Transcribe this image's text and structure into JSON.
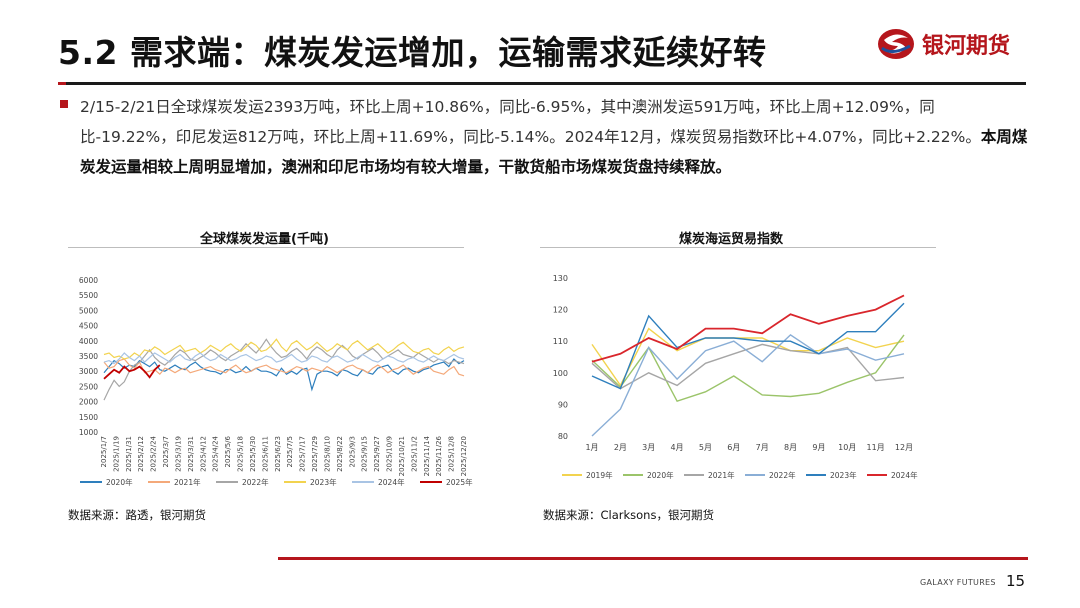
{
  "header": {
    "title": "5.2 需求端：煤炭发运增加，运输需求延续好转",
    "logo_text": "银河期货"
  },
  "body": {
    "text_plain": "2/15-2/21日全球煤炭发运2393万吨，环比上周+10.86%，同比-6.95%，其中澳洲发运591万吨，环比上周+12.09%，同比-19.22%，印尼发运812万吨，环比上周+11.69%，同比-5.14%。2024年12月，煤炭贸易指数环比+4.07%，同比+2.22%。",
    "text_bold": "本周煤炭发运量相较上周明显增加，澳洲和印尼市场均有较大增量，干散货船市场煤炭货盘持续释放。"
  },
  "chart_left": {
    "title": "全球煤炭发运量(千吨)",
    "source": "数据来源：路透，银河期货"
  },
  "chart_right": {
    "title": "煤炭海运贸易指数",
    "source": "数据来源：Clarksons，银河期货"
  },
  "footer": {
    "brand": "GALAXY FUTURES",
    "page": "15"
  },
  "colors": {
    "accent_red": "#b5161c",
    "s2019": "#f2d34f",
    "s2020": "#9bc46a",
    "s2021": "#a6a6a6",
    "s2022": "#8aaed6",
    "s2023": "#2e7fbd",
    "s2024": "#d9262c"
  },
  "chart_data": [
    {
      "type": "line",
      "ylim": [
        1000,
        6000
      ],
      "yticks": [
        1000,
        1500,
        2000,
        2500,
        3000,
        3500,
        4000,
        4500,
        5000,
        5500,
        6000
      ],
      "x_tick_labels": [
        "2025/1/7",
        "2025/1/19",
        "2025/1/31",
        "2025/2/12",
        "2025/2/24",
        "2025/3/7",
        "2025/3/19",
        "2025/3/31",
        "2025/4/12",
        "2025/4/24",
        "2025/5/6",
        "2025/5/18",
        "2025/5/30",
        "2025/6/11",
        "2025/6/23",
        "2025/7/5",
        "2025/7/17",
        "2025/7/29",
        "2025/8/10",
        "2025/8/22",
        "2025/9/3",
        "2025/9/15",
        "2025/9/27",
        "2025/10/9",
        "2025/10/21",
        "2025/11/2",
        "2025/11/14",
        "2025/11/26",
        "2025/12/8",
        "2025/12/20"
      ],
      "legend_position": "bottom",
      "grid": false,
      "series": [
        {
          "name": "2020年",
          "color": "#2e7fbd",
          "values": [
            2950,
            3150,
            3350,
            3250,
            3100,
            3200,
            3150,
            3350,
            3250,
            3150,
            3300,
            3050,
            3000,
            3100,
            3200,
            3100,
            3050,
            3200,
            3300,
            3150,
            3050,
            3000,
            2980,
            2900,
            3050,
            3050,
            2950,
            3000,
            3150,
            3000,
            3100,
            3000,
            3000,
            2950,
            2850,
            3100,
            2900,
            3000,
            2900,
            3050,
            3100,
            2400,
            2900,
            3000,
            3000,
            2950,
            2850,
            3050,
            3000,
            2900,
            2850,
            3050,
            2950,
            2900,
            3100,
            3150,
            3200,
            3000,
            2900,
            3050,
            3100,
            3000,
            2950,
            3050,
            3100,
            3200,
            3250,
            3300,
            3150,
            3400,
            3250,
            3350
          ]
        },
        {
          "name": "2021年",
          "color": "#f4a97a",
          "values": [
            3300,
            3100,
            3150,
            3350,
            3400,
            3200,
            3100,
            3300,
            2950,
            3000,
            3050,
            2900,
            3100,
            3050,
            2950,
            3050,
            3100,
            2950,
            3000,
            3050,
            3100,
            3150,
            3050,
            3000,
            2950,
            3100,
            3200,
            3050,
            2950,
            3000,
            3100,
            3150,
            3200,
            3100,
            3050,
            3000,
            2950,
            3050,
            3150,
            3100,
            3000,
            3100,
            3050,
            3000,
            3150,
            3050,
            2950,
            3050,
            3150,
            3200,
            3100,
            3050,
            2950,
            3100,
            3200,
            3100,
            2950,
            3050,
            3100,
            3200,
            3050,
            2900,
            3000,
            3100,
            3150,
            3000,
            2950,
            2900,
            3050,
            3150,
            2900,
            2850
          ]
        },
        {
          "name": "2022年",
          "color": "#a6a6a6",
          "values": [
            2050,
            2400,
            2700,
            2500,
            2650,
            3000,
            3200,
            3300,
            3500,
            3700,
            3450,
            3300,
            3200,
            3350,
            3550,
            3700,
            3600,
            3400,
            3350,
            3450,
            3550,
            3700,
            3600,
            3450,
            3350,
            3500,
            3600,
            3700,
            3900,
            3750,
            3600,
            3800,
            4050,
            3800,
            3600,
            3450,
            3500,
            3650,
            3750,
            3600,
            3400,
            3650,
            3800,
            3700,
            3550,
            3450,
            3700,
            3850,
            3700,
            3500,
            3400,
            3550,
            3650,
            3750,
            3600,
            3400,
            3500,
            3600,
            3700,
            3550,
            3500,
            3450,
            3600,
            3500,
            3400,
            3300,
            3400,
            3350,
            3250,
            3350,
            3300,
            3250
          ]
        },
        {
          "name": "2023年",
          "color": "#f2d34f",
          "values": [
            3550,
            3600,
            3450,
            3500,
            3400,
            3450,
            3600,
            3500,
            3700,
            3650,
            3800,
            3700,
            3550,
            3650,
            3750,
            3850,
            3650,
            3700,
            3750,
            3600,
            3700,
            3850,
            3750,
            3650,
            3800,
            3900,
            3750,
            3650,
            3800,
            3950,
            3850,
            3650,
            3700,
            3850,
            4050,
            3800,
            3650,
            3900,
            4000,
            3850,
            3700,
            3800,
            3950,
            3800,
            3650,
            3750,
            3900,
            3800,
            3700,
            3900,
            4000,
            3850,
            3700,
            3800,
            3900,
            3750,
            3600,
            3700,
            3850,
            3950,
            3800,
            3650,
            3600,
            3700,
            3750,
            3600,
            3550,
            3700,
            3800,
            3650,
            3750,
            3800
          ]
        },
        {
          "name": "2024年",
          "color": "#a9c4e4",
          "values": [
            3300,
            3350,
            3250,
            3400,
            3600,
            3450,
            3350,
            3500,
            3300,
            3450,
            3600,
            3500,
            3400,
            3300,
            3450,
            3550,
            3400,
            3350,
            3500,
            3600,
            3450,
            3350,
            3400,
            3550,
            3450,
            3350,
            3400,
            3500,
            3550,
            3450,
            3350,
            3400,
            3500,
            3450,
            3300,
            3350,
            3450,
            3550,
            3400,
            3300,
            3350,
            3500,
            3450,
            3350,
            3300,
            3450,
            3500,
            3400,
            3300,
            3350,
            3450,
            3550,
            3450,
            3350,
            3300,
            3400,
            3500,
            3450,
            3350,
            3300,
            3400,
            3450,
            3350,
            3300,
            3400,
            3500,
            3400,
            3350,
            3450,
            3550,
            3450,
            3400
          ]
        },
        {
          "name": "2025年",
          "color": "#c00000",
          "values": [
            2750,
            2900,
            3050,
            2950,
            3150,
            3000,
            3050,
            3150,
            3000,
            2800,
            3050,
            3200
          ]
        }
      ]
    },
    {
      "type": "line",
      "categories": [
        "1月",
        "2月",
        "3月",
        "4月",
        "5月",
        "6月",
        "7月",
        "8月",
        "9月",
        "10月",
        "11月",
        "12月"
      ],
      "ylim": [
        80,
        130
      ],
      "yticks": [
        80,
        90,
        100,
        110,
        120,
        130
      ],
      "legend_position": "bottom",
      "grid": false,
      "series": [
        {
          "name": "2019年",
          "color": "#f2d34f",
          "values": [
            109,
            96,
            114,
            107,
            111,
            111,
            111,
            107,
            107,
            111,
            108,
            110
          ]
        },
        {
          "name": "2020年",
          "color": "#9bc46a",
          "values": [
            104,
            95.5,
            108,
            91,
            94,
            99,
            93,
            92.5,
            93.5,
            97,
            100,
            112
          ]
        },
        {
          "name": "2021年",
          "color": "#a6a6a6",
          "values": [
            103,
            95,
            100,
            96,
            103,
            106,
            109,
            107,
            106,
            108,
            97.5,
            98.5
          ]
        },
        {
          "name": "2022年",
          "color": "#8aaed6",
          "values": [
            80,
            88.5,
            108,
            98,
            107,
            110,
            103.5,
            112,
            106,
            107.5,
            104,
            106
          ]
        },
        {
          "name": "2023年",
          "color": "#2e7fbd",
          "values": [
            99,
            95,
            118,
            108,
            111,
            111,
            110,
            110,
            106,
            113,
            113,
            122
          ]
        },
        {
          "name": "2024年",
          "color": "#d9262c",
          "values": [
            103.5,
            106,
            111,
            107.5,
            114,
            114,
            112.5,
            118.5,
            115.5,
            118,
            120,
            124.5
          ]
        }
      ]
    }
  ]
}
